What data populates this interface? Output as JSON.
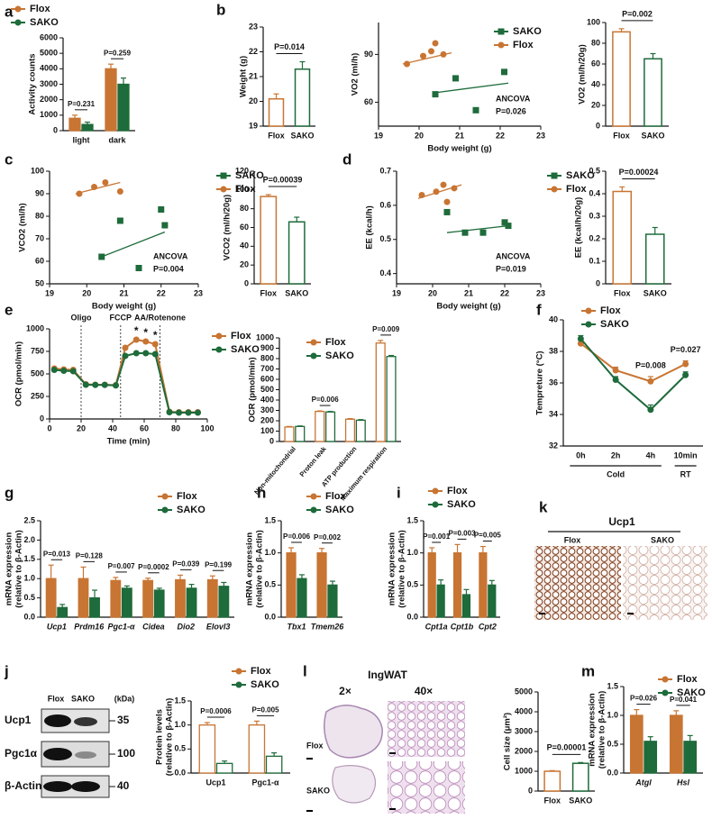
{
  "chart_data": [
    {
      "type": "bar",
      "panel": "a",
      "ylabel": "Activity counts",
      "categories": [
        "light",
        "dark"
      ],
      "series": [
        {
          "name": "Flox",
          "color": "#c87533",
          "values": [
            800,
            4000
          ],
          "errors": [
            200,
            300
          ]
        },
        {
          "name": "SAKO",
          "color": "#1e6b3b",
          "values": [
            400,
            3000
          ],
          "errors": [
            150,
            400
          ]
        }
      ],
      "p_values": [
        "P=0.231",
        "P=0.259"
      ],
      "ylim": [
        0,
        6000
      ],
      "yticks": [
        0,
        1000,
        2000,
        3000,
        4000,
        5000,
        6000
      ],
      "bar_style": "filled",
      "legend": "upper left"
    },
    {
      "type": "bar",
      "panel": "b",
      "ylabel": "Weight (g)",
      "categories": [
        "Flox",
        "SAKO"
      ],
      "values": [
        20.1,
        21.3
      ],
      "errors": [
        0.2,
        0.3
      ],
      "colors": [
        "#c87533",
        "#1e6b3b"
      ],
      "bar_style": "outline",
      "p_value": "P=0.014",
      "ylim": [
        19,
        23
      ],
      "yticks": [
        19,
        20,
        21,
        22,
        23
      ]
    },
    {
      "type": "scatter",
      "ylabel": "VO2 (ml/h)",
      "xlabel": "Body weight (g)",
      "series": [
        {
          "name": "SAKO",
          "color": "#1e6b3b",
          "marker": "square",
          "x": [
            20.4,
            20.9,
            21.4,
            22.1
          ],
          "values": [
            65,
            75,
            55,
            79
          ],
          "fit_x": [
            20.4,
            22.2
          ],
          "fit_y": [
            66,
            72
          ]
        },
        {
          "name": "Flox",
          "color": "#c87533",
          "marker": "circle",
          "x": [
            19.7,
            20.1,
            20.3,
            20.4,
            20.6
          ],
          "values": [
            84,
            89,
            92,
            97,
            90
          ],
          "fit_x": [
            19.6,
            20.8
          ],
          "fit_y": [
            84,
            91
          ]
        }
      ],
      "note": "ANCOVA",
      "p_value": "P=0.026",
      "xlim": [
        19,
        23
      ],
      "xticks": [
        19,
        20,
        21,
        22,
        23
      ],
      "ylim": [
        45,
        110
      ],
      "yticks": [
        60,
        90
      ],
      "legend": "upper right"
    },
    {
      "type": "bar",
      "ylabel": "VO2 (ml/h/20g)",
      "categories": [
        "Flox",
        "SAKO"
      ],
      "values": [
        91,
        65
      ],
      "errors": [
        3,
        5
      ],
      "colors": [
        "#c87533",
        "#1e6b3b"
      ],
      "bar_style": "outline",
      "p_value": "P=0.002",
      "ylim": [
        0,
        100
      ],
      "yticks": [
        0,
        20,
        40,
        60,
        80,
        100
      ]
    },
    {
      "type": "scatter",
      "panel": "c",
      "ylabel": "VCO2 (ml/h)",
      "xlabel": "Body weight (g)",
      "series": [
        {
          "name": "SAKO",
          "color": "#1e6b3b",
          "marker": "square",
          "x": [
            20.4,
            20.9,
            21.4,
            22.0,
            22.1
          ],
          "values": [
            62,
            78,
            57,
            83,
            76
          ],
          "fit_x": [
            20.4,
            22.1
          ],
          "fit_y": [
            62,
            73
          ]
        },
        {
          "name": "Flox",
          "color": "#c87533",
          "marker": "circle",
          "x": [
            19.8,
            20.2,
            20.5,
            20.9
          ],
          "values": [
            90,
            93,
            95,
            91
          ],
          "fit_x": [
            19.7,
            20.9
          ],
          "fit_y": [
            90,
            95
          ]
        }
      ],
      "note": "ANCOVA",
      "p_value": "P=0.004",
      "xlim": [
        19,
        23
      ],
      "xticks": [
        19,
        20,
        21,
        22,
        23
      ],
      "ylim": [
        50,
        100
      ],
      "yticks": [
        50,
        60,
        70,
        80,
        90,
        100
      ],
      "legend": "upper right"
    },
    {
      "type": "bar",
      "ylabel": "VCO2 (ml/h/20g)",
      "categories": [
        "Flox",
        "SAKO"
      ],
      "values": [
        93,
        66
      ],
      "errors": [
        2,
        5
      ],
      "colors": [
        "#c87533",
        "#1e6b3b"
      ],
      "bar_style": "outline",
      "p_value": "P=0.00039",
      "ylim": [
        0,
        120
      ],
      "yticks": [
        0,
        20,
        40,
        60,
        80,
        100,
        120
      ]
    },
    {
      "type": "scatter",
      "panel": "d",
      "ylabel": "EE (kcal/h)",
      "xlabel": "Body weight (g)",
      "series": [
        {
          "name": "SAKO",
          "color": "#1e6b3b",
          "marker": "square",
          "x": [
            20.4,
            20.9,
            21.4,
            22.0,
            22.1
          ],
          "values": [
            0.58,
            0.52,
            0.52,
            0.55,
            0.54
          ],
          "fit_x": [
            20.4,
            22.1
          ],
          "fit_y": [
            0.52,
            0.54
          ]
        },
        {
          "name": "Flox",
          "color": "#c87533",
          "marker": "circle",
          "x": [
            19.7,
            20.1,
            20.3,
            20.4,
            20.6
          ],
          "values": [
            0.63,
            0.64,
            0.66,
            0.61,
            0.65
          ],
          "fit_x": [
            19.6,
            20.8
          ],
          "fit_y": [
            0.62,
            0.66
          ]
        }
      ],
      "note": "ANCOVA",
      "p_value": "P=0.019",
      "xlim": [
        19,
        23
      ],
      "xticks": [
        19,
        20,
        21,
        22,
        23
      ],
      "ylim": [
        0.37,
        0.7
      ],
      "yticks": [
        0.4,
        0.5,
        0.6,
        0.7
      ],
      "legend": "upper right"
    },
    {
      "type": "bar",
      "ylabel": "EE (kcal/h/20g)",
      "categories": [
        "Flox",
        "SAKO"
      ],
      "values": [
        0.41,
        0.22
      ],
      "errors": [
        0.02,
        0.03
      ],
      "colors": [
        "#c87533",
        "#1e6b3b"
      ],
      "bar_style": "outline",
      "p_value": "P=0.00024",
      "ylim": [
        0,
        0.5
      ],
      "yticks": [
        0,
        0.1,
        0.2,
        0.3,
        0.4,
        0.5
      ]
    },
    {
      "type": "line",
      "panel": "e",
      "ylabel": "OCR (pmol/min)",
      "xlabel": "Time (min)",
      "series": [
        {
          "name": "Flox",
          "color": "#c87533",
          "x": [
            3,
            9,
            15,
            23,
            29,
            35,
            42,
            48,
            55,
            61,
            67,
            76,
            82,
            88,
            94
          ],
          "values": [
            560,
            550,
            545,
            385,
            380,
            380,
            375,
            790,
            880,
            860,
            830,
            80,
            75,
            75,
            75
          ]
        },
        {
          "name": "SAKO",
          "color": "#1e6b3b",
          "x": [
            3,
            9,
            15,
            23,
            29,
            35,
            42,
            48,
            55,
            61,
            67,
            76,
            82,
            88,
            94
          ],
          "values": [
            545,
            535,
            530,
            380,
            378,
            378,
            372,
            700,
            730,
            730,
            720,
            75,
            70,
            70,
            70
          ]
        }
      ],
      "stages": [
        {
          "x": 20,
          "label": "Oligo"
        },
        {
          "x": 45,
          "label": "FCCP"
        },
        {
          "x": 70,
          "label": "AA/Rotenone"
        }
      ],
      "star_label": "*",
      "star_x": [
        55,
        61,
        67
      ],
      "xlim": [
        0,
        100
      ],
      "xticks": [
        0,
        20,
        40,
        60,
        80,
        100
      ],
      "ylim": [
        0,
        1000
      ],
      "yticks": [
        0,
        250,
        500,
        750,
        1000
      ],
      "legend": "upper right"
    },
    {
      "type": "bar",
      "ylabel": "OCR (pmol/min)",
      "categories": [
        "Non-mitochondrial",
        "Proton leak",
        "ATP production",
        "Maximum respiration"
      ],
      "series": [
        {
          "name": "Flox",
          "color": "#c87533",
          "values": [
            140,
            290,
            215,
            950
          ],
          "errors": [
            5,
            5,
            6,
            25
          ]
        },
        {
          "name": "SAKO",
          "color": "#1e6b3b",
          "values": [
            145,
            285,
            205,
            820
          ],
          "errors": [
            5,
            5,
            6,
            10
          ]
        }
      ],
      "p_values": [
        null,
        "P=0.006",
        null,
        "P=0.009"
      ],
      "ylim": [
        0,
        1000
      ],
      "yticks": [
        0,
        100,
        200,
        300,
        400,
        500,
        600,
        700,
        800,
        900,
        1000
      ],
      "bar_style": "outline",
      "legend": "upper left"
    },
    {
      "type": "line",
      "panel": "f",
      "ylabel": "Tempreture (°C)",
      "categories": [
        "0h",
        "2h",
        "4h",
        "10min"
      ],
      "series": [
        {
          "name": "Flox",
          "color": "#c87533",
          "values": [
            38.5,
            36.8,
            36.1,
            37.2
          ],
          "errors": [
            0.2,
            0.2,
            0.3,
            0.2
          ]
        },
        {
          "name": "SAKO",
          "color": "#1e6b3b",
          "values": [
            38.8,
            36.2,
            34.3,
            36.5
          ],
          "errors": [
            0.2,
            0.2,
            0.3,
            0.2
          ]
        }
      ],
      "p_values": [
        null,
        null,
        "P=0.008",
        "P=0.027"
      ],
      "groups": [
        "Cold",
        "RT"
      ],
      "ylim": [
        32,
        40
      ],
      "yticks": [
        32,
        34,
        36,
        38,
        40
      ],
      "legend": "upper left"
    },
    {
      "type": "bar",
      "panel": "g",
      "ylabel": [
        "mRNA expression",
        "(relative to β-Actin)"
      ],
      "categories": [
        "Ucp1",
        "Prdm16",
        "Pgc1-α",
        "Cidea",
        "Dio2",
        "Elovl3"
      ],
      "series": [
        {
          "name": "Flox",
          "color": "#c87533",
          "values": [
            1.0,
            1.0,
            0.95,
            0.95,
            0.97,
            0.97
          ],
          "errors": [
            0.35,
            0.3,
            0.08,
            0.06,
            0.12,
            0.1
          ]
        },
        {
          "name": "SAKO",
          "color": "#1e6b3b",
          "values": [
            0.25,
            0.5,
            0.75,
            0.7,
            0.75,
            0.8
          ],
          "errors": [
            0.08,
            0.2,
            0.06,
            0.05,
            0.1,
            0.1
          ]
        }
      ],
      "p_values": [
        "P=0.013",
        "P=0.128",
        "P=0.007",
        "P=0.0002",
        "P=0.039",
        "P=0.199"
      ],
      "ylim": [
        0,
        2.5
      ],
      "yticks": [
        {
          "value": 0,
          "label": "0.0"
        },
        0.5,
        {
          "value": 1,
          "label": "1.0"
        },
        1.5,
        {
          "value": 2,
          "label": "2.0"
        },
        2.5
      ],
      "bar_style": "filled",
      "legend": "upper right"
    },
    {
      "type": "bar",
      "panel": "h",
      "ylabel": [
        "mRNA expression",
        "(relative to β-Actin)"
      ],
      "categories": [
        "Tbx1",
        "Tmem26"
      ],
      "series": [
        {
          "name": "Flox",
          "color": "#c87533",
          "values": [
            1.0,
            1.0
          ],
          "errors": [
            0.08,
            0.07
          ]
        },
        {
          "name": "SAKO",
          "color": "#1e6b3b",
          "values": [
            0.6,
            0.5
          ],
          "errors": [
            0.06,
            0.06
          ]
        }
      ],
      "p_values": [
        "P=0.006",
        "P=0.002"
      ],
      "ylim": [
        0,
        1.5
      ],
      "yticks": [
        {
          "value": 0,
          "label": "0.0"
        },
        0.5,
        {
          "value": 1,
          "label": "1.0"
        },
        1.5
      ],
      "bar_style": "filled",
      "legend": "upper right"
    },
    {
      "type": "bar",
      "panel": "i",
      "ylabel": [
        "mRNA expression",
        "(relative to β-Actin)"
      ],
      "categories": [
        "Cpt1a",
        "Cpt1b",
        "Cpt2"
      ],
      "series": [
        {
          "name": "Flox",
          "color": "#c87533",
          "values": [
            1.0,
            1.0,
            1.0
          ],
          "errors": [
            0.08,
            0.13,
            0.1
          ]
        },
        {
          "name": "SAKO",
          "color": "#1e6b3b",
          "values": [
            0.5,
            0.35,
            0.5
          ],
          "errors": [
            0.08,
            0.08,
            0.07
          ]
        }
      ],
      "p_values": [
        "P=0.001",
        "P=0.003",
        "P=0.005"
      ],
      "ylim": [
        0,
        1.5
      ],
      "yticks": [
        {
          "value": 0,
          "label": "0.0"
        },
        0.5,
        {
          "value": 1,
          "label": "1.0"
        },
        1.5
      ],
      "bar_style": "filled",
      "legend": "upper left"
    },
    {
      "type": "bar",
      "ylabel": [
        "Protein levels",
        "(relative to β-Actin)"
      ],
      "categories": [
        "Ucp1",
        "Pgc1-α"
      ],
      "series": [
        {
          "name": "Flox",
          "color": "#c87533",
          "values": [
            1.0,
            1.0
          ],
          "errors": [
            0.05,
            0.08
          ]
        },
        {
          "name": "SAKO",
          "color": "#1e6b3b",
          "values": [
            0.2,
            0.35
          ],
          "errors": [
            0.05,
            0.07
          ]
        }
      ],
      "p_values": [
        "P=0.0006",
        "P=0.005"
      ],
      "ylim": [
        0,
        1.5
      ],
      "yticks": [
        {
          "value": 0,
          "label": "0.0"
        },
        0.5,
        {
          "value": 1,
          "label": "1.0"
        },
        1.5
      ],
      "bar_style": "outline",
      "legend": "upper right"
    },
    {
      "type": "bar",
      "ylabel": "Cell size (μm²)",
      "categories": [
        "Flox",
        "SAKO"
      ],
      "values": [
        1000,
        1400
      ],
      "errors": [
        30,
        40
      ],
      "colors": [
        "#c87533",
        "#1e6b3b"
      ],
      "bar_style": "outline",
      "p_value": "P=0.00001",
      "ylim": [
        0,
        5000
      ],
      "yticks": [
        0,
        1000,
        2000,
        3000,
        4000,
        5000
      ]
    },
    {
      "type": "bar",
      "panel": "m",
      "ylabel": [
        "mRNA expression",
        "(relative to β-Actin)"
      ],
      "categories": [
        "Atgl",
        "Hsl"
      ],
      "series": [
        {
          "name": "Flox",
          "color": "#c87533",
          "values": [
            1.0,
            1.0
          ],
          "errors": [
            0.1,
            0.08
          ]
        },
        {
          "name": "SAKO",
          "color": "#1e6b3b",
          "values": [
            0.55,
            0.55
          ],
          "errors": [
            0.08,
            0.1
          ]
        }
      ],
      "p_values": [
        "P=0.026",
        "P=0.041"
      ],
      "ylim": [
        0,
        1.5
      ],
      "yticks": [
        {
          "value": 0,
          "label": "0.0"
        },
        0.5,
        {
          "value": 1,
          "label": "1.0"
        },
        1.5
      ],
      "bar_style": "filled",
      "legend": "upper right"
    }
  ],
  "figures": {
    "j": {
      "panel": "j",
      "lanes": [
        "Flox",
        "SAKO"
      ],
      "unit": "(kDa)",
      "rows": [
        {
          "protein": "Ucp1",
          "kda": 35
        },
        {
          "protein": "Pgc1α",
          "kda": 100
        },
        {
          "protein": "β-Actin",
          "kda": 40
        }
      ]
    },
    "k": {
      "panel": "k",
      "title": "Ucp1",
      "groups": [
        "Flox",
        "SAKO"
      ]
    },
    "l": {
      "panel": "l",
      "title": "IngWAT",
      "magnifications": [
        "2×",
        "40×"
      ],
      "groups": [
        "Flox",
        "SAKO"
      ]
    }
  }
}
